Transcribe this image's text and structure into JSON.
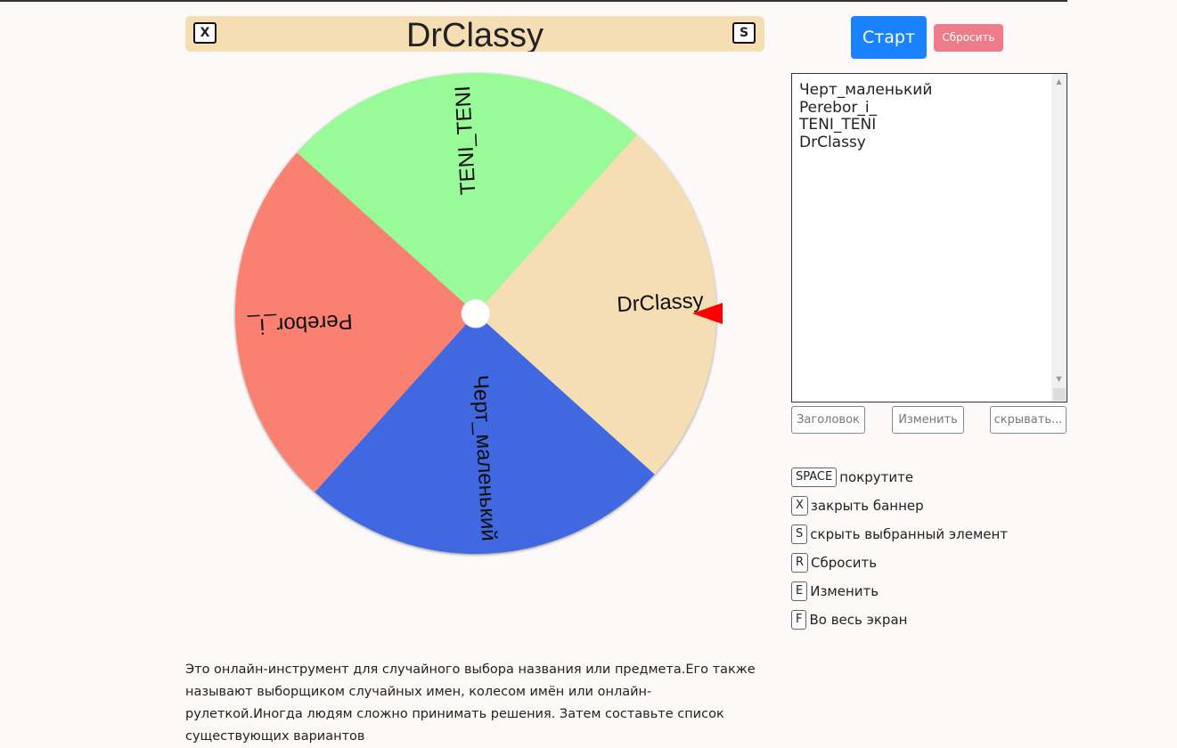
{
  "banner": {
    "title": "DrClassy",
    "close_key": "X",
    "hide_key": "S"
  },
  "wheel": {
    "rotation_deg": -3,
    "segments": [
      {
        "label": "DrClassy",
        "color": "#f5deb3"
      },
      {
        "label": "Черт_маленький",
        "color": "#4169e1"
      },
      {
        "label": "Perebor_i_",
        "color": "#fa8072"
      },
      {
        "label": "TENI_TENI",
        "color": "#98fb98"
      }
    ],
    "pointer_color": "#ff0000"
  },
  "controls": {
    "start_label": "Старт",
    "reset_label": "Сбросить"
  },
  "names_text": "Черт_маленький\nPerebor_i_\nTENI_TENI\nDrClassy",
  "settings_buttons": {
    "title": "Заголовок",
    "edit": "Изменить",
    "hide": "скрывать..."
  },
  "shortcuts": [
    {
      "key": "SPACE",
      "label": "покрутите"
    },
    {
      "key": "X",
      "label": "закрыть баннер"
    },
    {
      "key": "S",
      "label": "скрыть выбранный элемент"
    },
    {
      "key": "R",
      "label": "Сбросить"
    },
    {
      "key": "E",
      "label": "Изменить"
    },
    {
      "key": "F",
      "label": "Во весь экран"
    }
  ],
  "description": "Это онлайн-инструмент для случайного выбора названия или предмета.Его также называют выборщиком случайных имен, колесом имён или онлайн-рулеткой.Иногда людям сложно принимать решения. Затем составьте список существующих вариантов"
}
